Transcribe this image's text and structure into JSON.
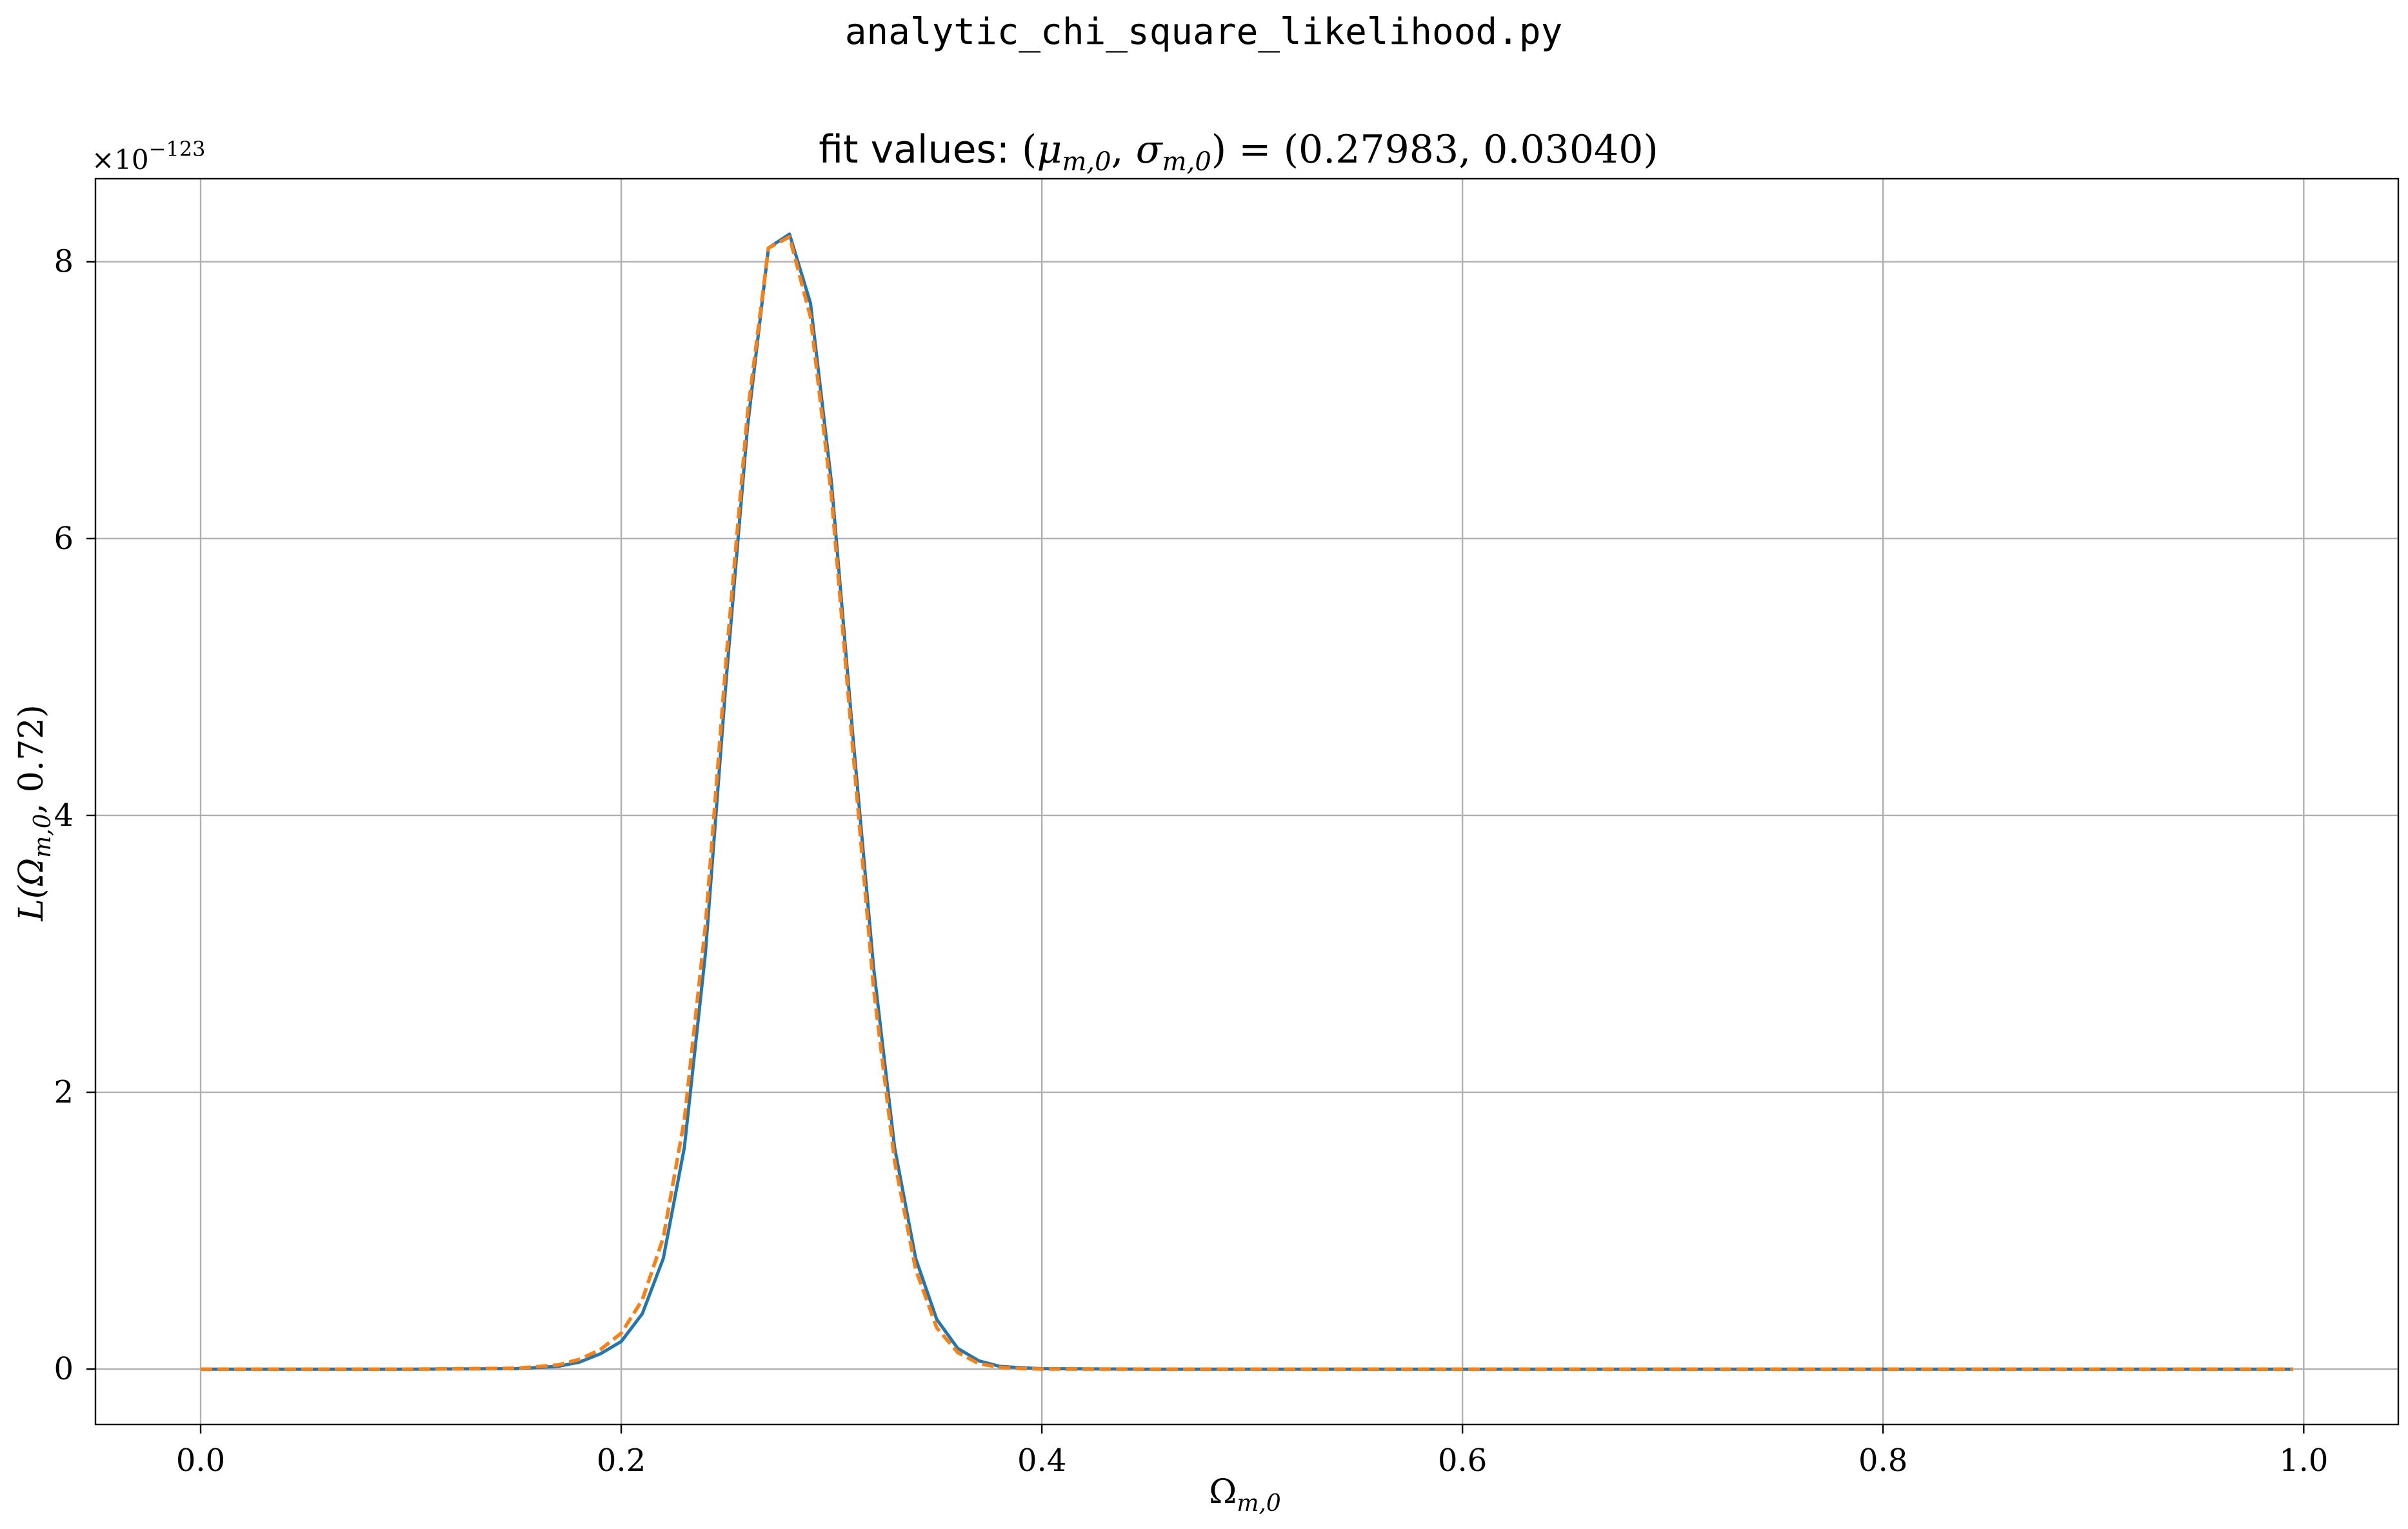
{
  "figure": {
    "suptitle": "analytic_chi_square_likelihood.py"
  },
  "chart_data": {
    "type": "line",
    "title": {
      "prefix": "fit values: ",
      "open": "(",
      "mu": "μ",
      "mu_sub": "m,0",
      "comma": ", ",
      "sigma": "σ",
      "sigma_sub": "m,0",
      "mid": ") = (",
      "values": "0.27983, 0.03040",
      "close": ")"
    },
    "fit": {
      "mu": 0.27983,
      "sigma": 0.0304
    },
    "xlabel": {
      "base": "Ω",
      "sub": "m,0"
    },
    "ylabel": {
      "prefix": "L(Ω",
      "sub": "m,0",
      "suffix": ", 0.72)"
    },
    "y_offset": {
      "base": "×10",
      "exponent": "−123"
    },
    "xlim": [
      -0.05,
      1.045
    ],
    "ylim": [
      -0.4,
      8.6
    ],
    "x_ticks": [
      {
        "value": 0.0,
        "label": "0.0"
      },
      {
        "value": 0.2,
        "label": "0.2"
      },
      {
        "value": 0.4,
        "label": "0.4"
      },
      {
        "value": 0.6,
        "label": "0.6"
      },
      {
        "value": 0.8,
        "label": "0.8"
      },
      {
        "value": 1.0,
        "label": "1.0"
      }
    ],
    "y_ticks": [
      {
        "value": 0,
        "label": "0"
      },
      {
        "value": 2,
        "label": "2"
      },
      {
        "value": 4,
        "label": "4"
      },
      {
        "value": 6,
        "label": "6"
      },
      {
        "value": 8,
        "label": "8"
      }
    ],
    "grid": true,
    "x": [
      0.0,
      0.1,
      0.15,
      0.17,
      0.18,
      0.19,
      0.2,
      0.21,
      0.22,
      0.23,
      0.24,
      0.25,
      0.26,
      0.27,
      0.28,
      0.29,
      0.3,
      0.31,
      0.32,
      0.33,
      0.34,
      0.35,
      0.36,
      0.37,
      0.38,
      0.39,
      0.4,
      0.45,
      0.5,
      0.6,
      0.7,
      0.8,
      0.9,
      0.995
    ],
    "series": [
      {
        "style": "solid",
        "color": "#1f77b4",
        "values": [
          0,
          0,
          0.003,
          0.02,
          0.05,
          0.11,
          0.2,
          0.4,
          0.8,
          1.6,
          3.0,
          5.0,
          6.8,
          8.1,
          8.2,
          7.7,
          6.4,
          4.6,
          2.9,
          1.6,
          0.8,
          0.36,
          0.15,
          0.06,
          0.02,
          0.01,
          0.003,
          0,
          0,
          0,
          0,
          0,
          0,
          0
        ]
      },
      {
        "style": "dashed",
        "color": "#ff7f0e",
        "values": [
          0,
          0,
          0.006,
          0.03,
          0.07,
          0.14,
          0.26,
          0.5,
          0.95,
          1.8,
          3.2,
          5.15,
          6.9,
          8.1,
          8.18,
          7.6,
          6.3,
          4.5,
          2.75,
          1.5,
          0.72,
          0.3,
          0.12,
          0.04,
          0.013,
          0.004,
          0.001,
          0,
          0,
          0,
          0,
          0,
          0,
          0
        ]
      }
    ]
  }
}
